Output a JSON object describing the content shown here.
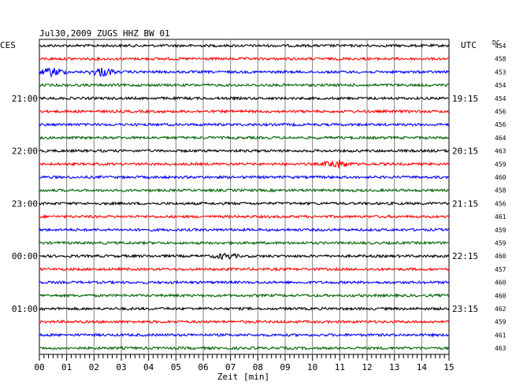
{
  "chart_data": {
    "type": "line",
    "title": "Jul30,2009   ZUGS HHZ BW 01",
    "left_timezone": "CES",
    "right_timezone": "UTC",
    "dc_header": "DC",
    "xlabel": "Zeit [min]",
    "xlim": [
      0,
      15
    ],
    "x_ticks": [
      "00",
      "01",
      "02",
      "03",
      "04",
      "05",
      "06",
      "07",
      "08",
      "09",
      "10",
      "11",
      "12",
      "13",
      "14",
      "15"
    ],
    "grid": true,
    "trace_colors": [
      "#000000",
      "#ff0000",
      "#0000ff",
      "#006400"
    ],
    "traces": [
      {
        "dc": "454",
        "amplitude": 1.0
      },
      {
        "dc": "458",
        "amplitude": 1.0
      },
      {
        "dc": "453",
        "amplitude": 1.0,
        "events": [
          {
            "minute": 0.5,
            "amplitude": 5
          },
          {
            "minute": 2.3,
            "amplitude": 5
          }
        ]
      },
      {
        "dc": "454",
        "amplitude": 1.0
      },
      {
        "dc": "454",
        "amplitude": 1.0,
        "left_label": "21:00",
        "right_label": "19:15"
      },
      {
        "dc": "456",
        "amplitude": 1.0
      },
      {
        "dc": "456",
        "amplitude": 1.0
      },
      {
        "dc": "464",
        "amplitude": 1.0
      },
      {
        "dc": "463",
        "amplitude": 1.0,
        "left_label": "22:00",
        "right_label": "20:15"
      },
      {
        "dc": "459",
        "amplitude": 1.0,
        "events": [
          {
            "minute": 10.9,
            "amplitude": 5
          }
        ]
      },
      {
        "dc": "460",
        "amplitude": 1.0
      },
      {
        "dc": "458",
        "amplitude": 1.0
      },
      {
        "dc": "456",
        "amplitude": 1.0,
        "left_label": "23:00",
        "right_label": "21:15"
      },
      {
        "dc": "461",
        "amplitude": 1.0
      },
      {
        "dc": "459",
        "amplitude": 1.0
      },
      {
        "dc": "459",
        "amplitude": 1.0
      },
      {
        "dc": "460",
        "amplitude": 1.0,
        "left_label": "00:00",
        "right_label": "22:15",
        "events": [
          {
            "minute": 6.8,
            "amplitude": 3
          }
        ]
      },
      {
        "dc": "457",
        "amplitude": 1.0
      },
      {
        "dc": "460",
        "amplitude": 1.0
      },
      {
        "dc": "460",
        "amplitude": 1.0
      },
      {
        "dc": "462",
        "amplitude": 1.0,
        "left_label": "01:00",
        "right_label": "23:15"
      },
      {
        "dc": "459",
        "amplitude": 1.0
      },
      {
        "dc": "461",
        "amplitude": 1.0
      },
      {
        "dc": "463",
        "amplitude": 1.0
      }
    ]
  }
}
